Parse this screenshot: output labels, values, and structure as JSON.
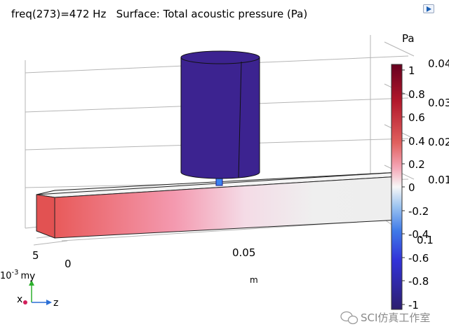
{
  "plot": {
    "title": "freq(273)=472 Hz   Surface: Total acoustic pressure (Pa)"
  },
  "axes": {
    "unit_label": "m",
    "z_ticks": [
      "0",
      "0.05"
    ],
    "y_ticks": [
      "5",
      "0"
    ],
    "y_exponent_label": "10",
    "y_exponent_power": "-3",
    "y_unit": "m",
    "right_ticks": [
      "0.04",
      "0.03",
      "0.02",
      "0.01",
      "0",
      "0.1"
    ]
  },
  "triad": {
    "x_label": "x",
    "y_label": "y",
    "z_label": "z"
  },
  "colorbar": {
    "unit": "Pa",
    "labels": [
      "1",
      "0.8",
      "0.6",
      "0.4",
      "0.2",
      "0",
      "-0.2",
      "-0.4",
      "-0.6",
      "-0.8",
      "-1"
    ],
    "colors": {
      "max": "#67001f",
      "high": "#d6604d",
      "mid_high": "#f4a5b5",
      "zero": "#f5f5f5",
      "mid_low": "#74a9e8",
      "low": "#3d3df0",
      "min": "#2d1e6e"
    }
  },
  "watermark": {
    "text": "SCI仿真工作室"
  }
}
